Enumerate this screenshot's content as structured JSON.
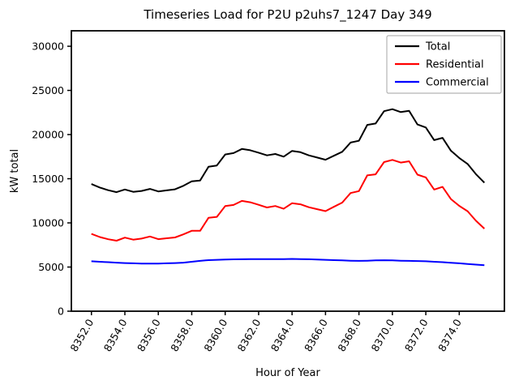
{
  "figure": {
    "background": "#ffffff"
  },
  "chart_data": {
    "type": "line",
    "title": "Timeseries Load for P2U p2uhs7_1247  Day 349",
    "xlabel": "Hour of Year",
    "ylabel": "kW total",
    "grid": false,
    "legend_position": "upper right",
    "xlim": [
      8350.8,
      8376.7
    ],
    "ylim": [
      0,
      31750
    ],
    "xticks": [
      8352,
      8354,
      8356,
      8358,
      8360,
      8362,
      8364,
      8366,
      8368,
      8370,
      8372,
      8374
    ],
    "xtick_labels": [
      "8352.0",
      "8354.0",
      "8356.0",
      "8358.0",
      "8360.0",
      "8362.0",
      "8364.0",
      "8366.0",
      "8368.0",
      "8370.0",
      "8372.0",
      "8374.0"
    ],
    "xtick_rotation": 60,
    "yticks": [
      0,
      5000,
      10000,
      15000,
      20000,
      25000,
      30000
    ],
    "ytick_labels": [
      "0",
      "5000",
      "10000",
      "15000",
      "20000",
      "25000",
      "30000"
    ],
    "x": [
      8352.0,
      8352.5,
      8353.0,
      8353.5,
      8354.0,
      8354.5,
      8355.0,
      8355.5,
      8356.0,
      8356.5,
      8357.0,
      8357.5,
      8358.0,
      8358.5,
      8359.0,
      8359.5,
      8360.0,
      8360.5,
      8361.0,
      8361.5,
      8362.0,
      8362.5,
      8363.0,
      8363.5,
      8364.0,
      8364.5,
      8365.0,
      8365.5,
      8366.0,
      8366.5,
      8367.0,
      8367.5,
      8368.0,
      8368.5,
      8369.0,
      8369.5,
      8370.0,
      8370.5,
      8371.0,
      8371.5,
      8372.0,
      8372.5,
      8373.0,
      8373.5,
      8374.0,
      8374.5,
      8375.0,
      8375.5
    ],
    "series": [
      {
        "name": "Total",
        "color": "#000000",
        "values": [
          14400,
          14000,
          13700,
          13480,
          13780,
          13520,
          13620,
          13850,
          13560,
          13680,
          13800,
          14200,
          14700,
          14800,
          16350,
          16500,
          17750,
          17900,
          18370,
          18220,
          17950,
          17650,
          17800,
          17500,
          18150,
          18000,
          17650,
          17400,
          17150,
          17600,
          18050,
          19100,
          19300,
          21100,
          21250,
          22650,
          22880,
          22550,
          22680,
          21140,
          20800,
          19370,
          19630,
          18180,
          17350,
          16670,
          15520,
          14550
        ]
      },
      {
        "name": "Residential",
        "color": "#ff0000",
        "values": [
          8750,
          8400,
          8150,
          7980,
          8330,
          8100,
          8220,
          8460,
          8160,
          8260,
          8350,
          8700,
          9100,
          9100,
          10570,
          10680,
          11900,
          12030,
          12490,
          12330,
          12050,
          11750,
          11910,
          11600,
          12230,
          12100,
          11770,
          11550,
          11330,
          11820,
          12300,
          13380,
          13600,
          15380,
          15500,
          16880,
          17130,
          16830,
          16980,
          15460,
          15150,
          13770,
          14080,
          12700,
          11930,
          11320,
          10240,
          9350
        ]
      },
      {
        "name": "Commercial",
        "color": "#0000ff",
        "values": [
          5650,
          5600,
          5550,
          5500,
          5450,
          5420,
          5400,
          5390,
          5400,
          5420,
          5450,
          5500,
          5600,
          5700,
          5780,
          5820,
          5850,
          5870,
          5880,
          5890,
          5900,
          5900,
          5890,
          5900,
          5920,
          5900,
          5880,
          5850,
          5820,
          5780,
          5750,
          5720,
          5700,
          5720,
          5750,
          5770,
          5750,
          5720,
          5700,
          5680,
          5650,
          5600,
          5550,
          5480,
          5420,
          5350,
          5280,
          5200
        ]
      }
    ]
  }
}
